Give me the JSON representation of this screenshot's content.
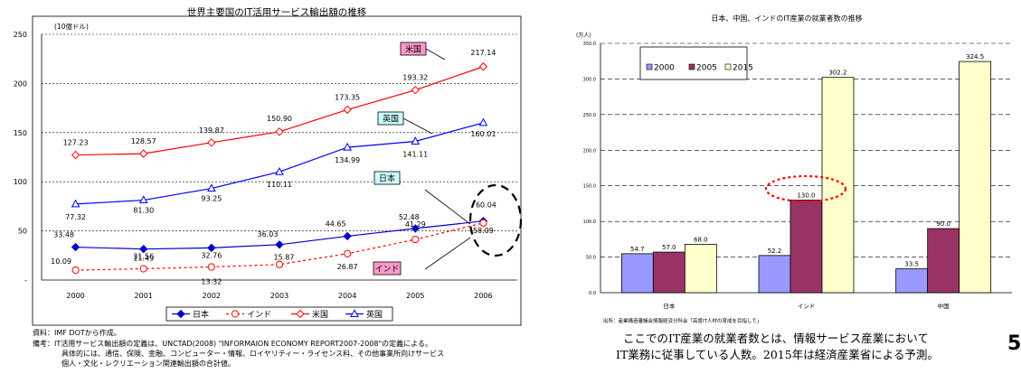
{
  "chart_data": [
    {
      "type": "line",
      "title": "世界主要国のIT活用サービス輸出額の推移",
      "ylabel": "(10億ドル)",
      "x": [
        "2000",
        "2001",
        "2002",
        "2003",
        "2004",
        "2005",
        "2006"
      ],
      "ylim": [
        0,
        250
      ],
      "yticks": [
        "-",
        "50",
        "100",
        "150",
        "200",
        "250"
      ],
      "grid": true,
      "legend": "bottom",
      "series": [
        {
          "name": "日本",
          "values": [
            33.48,
            31.56,
            32.76,
            36.03,
            44.65,
            52.48,
            60.04
          ],
          "labels": [
            "33.48",
            "31.56",
            "32.76",
            "36.03",
            "44.65",
            "52.48",
            "60.04"
          ],
          "color": "#0000cc",
          "style": "solid",
          "marker": "diamond-filled",
          "tag": "日本"
        },
        {
          "name": "インド",
          "values": [
            10.09,
            11.49,
            13.32,
            15.87,
            26.87,
            41.29,
            58.09
          ],
          "labels": [
            "10.09",
            "11.49",
            "13.32",
            "15.87",
            "26.87",
            "41.29",
            "58.09"
          ],
          "color": "#ff0000",
          "style": "dotted",
          "marker": "circle-open",
          "tag": "インド"
        },
        {
          "name": "米国",
          "values": [
            127.23,
            128.57,
            139.87,
            150.9,
            173.35,
            193.32,
            217.14
          ],
          "labels": [
            "127.23",
            "128.57",
            "139.87",
            "150.90",
            "173.35",
            "193.32",
            "217.14"
          ],
          "color": "#ff0000",
          "style": "solid",
          "marker": "diamond-open",
          "tag": "米国"
        },
        {
          "name": "英国",
          "values": [
            77.32,
            81.3,
            93.25,
            110.11,
            134.99,
            141.11,
            160.01
          ],
          "labels": [
            "77.32",
            "81.30",
            "93.25",
            "110.11",
            "134.99",
            "141.11",
            "160.01"
          ],
          "color": "#0000ff",
          "style": "solid",
          "marker": "triangle-open",
          "tag": "英国"
        }
      ]
    },
    {
      "type": "bar",
      "title": "日本、中国、インドのIT産業の就業者数の推移",
      "ylabel": "(万人)",
      "categories": [
        "日本",
        "インド",
        "中国"
      ],
      "ylim": [
        0,
        350
      ],
      "yticks": [
        "0.0",
        "50.0",
        "100.0",
        "150.0",
        "200.0",
        "250.0",
        "300.0",
        "350.0"
      ],
      "grid": true,
      "legend": "top-left",
      "series": [
        {
          "name": "2000",
          "values": [
            54.7,
            52.2,
            33.5
          ],
          "labels": [
            "54.7",
            "52.2",
            "33.5"
          ],
          "color": "#9999ff"
        },
        {
          "name": "2005",
          "values": [
            57.0,
            130.0,
            90.0
          ],
          "labels": [
            "57.0",
            "130.0",
            "90.0"
          ],
          "color": "#993366"
        },
        {
          "name": "2015",
          "values": [
            68.0,
            302.2,
            324.5
          ],
          "labels": [
            "68.0",
            "302.2",
            "324.5"
          ],
          "color": "#ffffcc"
        }
      ]
    }
  ],
  "left_notes": {
    "source": "資料：IMF DOTから作成。",
    "note1": "備考：IT活用サービス輸出額の定義は、UNCTAD(2008) \"INFORMAION ECONOMY REPORT2007-2008\"の定義による。",
    "note2": "具体的には、通信、保険、金融、コンピューター・情報、ロイヤリティー・ライセンス料、その他事業所向けサービス",
    "note3": "個人・文化・レクリエーション関連輸出額の合計値。"
  },
  "right_notes": {
    "source": "出所：産業構造審議会情報経済分科会「高度IT人材の育成を目指して」",
    "caption1": "ここでのIT産業の就業者数とは、情報サービス産業において",
    "caption2": "IT業務に従事している人数。2015年は経済産業省による予測。",
    "page_number": "5"
  },
  "colors": {
    "highlight_oval": "#ff0000",
    "dashed_oval": "#000000",
    "tag_pink": "#ff99cc",
    "tag_cyan": "#ccffff"
  }
}
